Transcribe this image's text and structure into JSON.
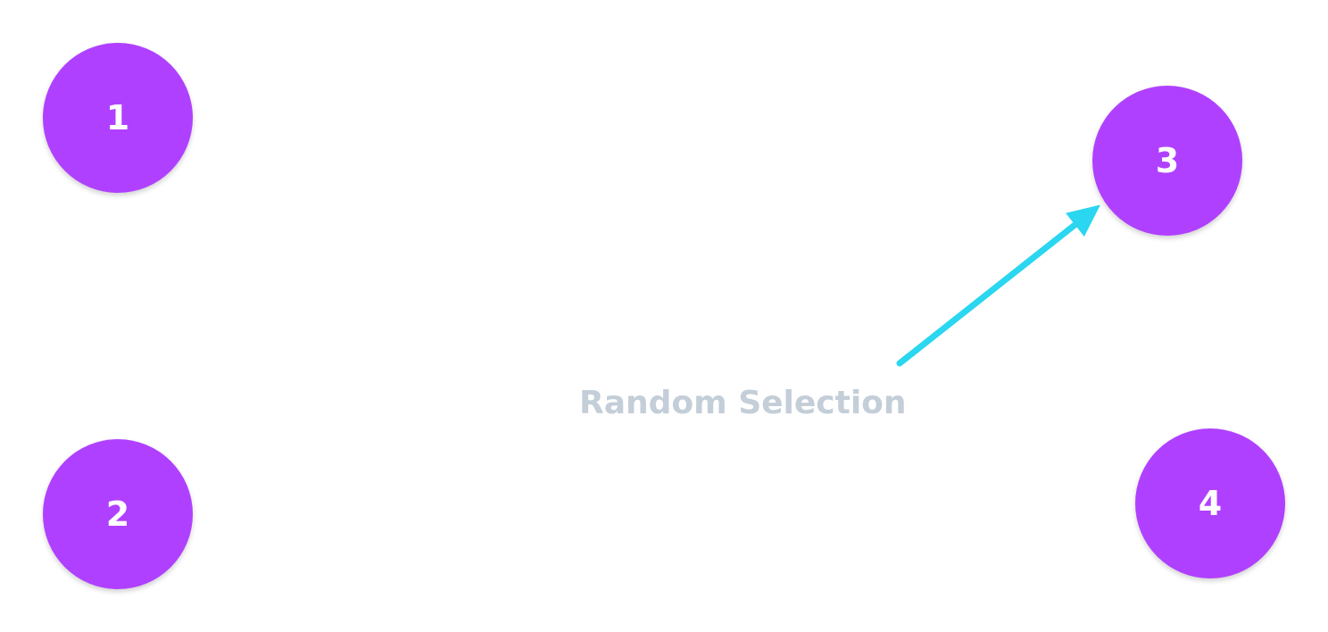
{
  "nodes": [
    {
      "id": "1",
      "label": "1"
    },
    {
      "id": "2",
      "label": "2"
    },
    {
      "id": "3",
      "label": "3"
    },
    {
      "id": "4",
      "label": "4"
    }
  ],
  "caption": "Random Selection",
  "arrow": {
    "from": "caption",
    "to": "3"
  },
  "colors": {
    "node_fill": "#b040ff",
    "node_text": "#ffffff",
    "caption_text": "#c3ced8",
    "arrow": "#2ad6f0",
    "background": "#ffffff"
  }
}
